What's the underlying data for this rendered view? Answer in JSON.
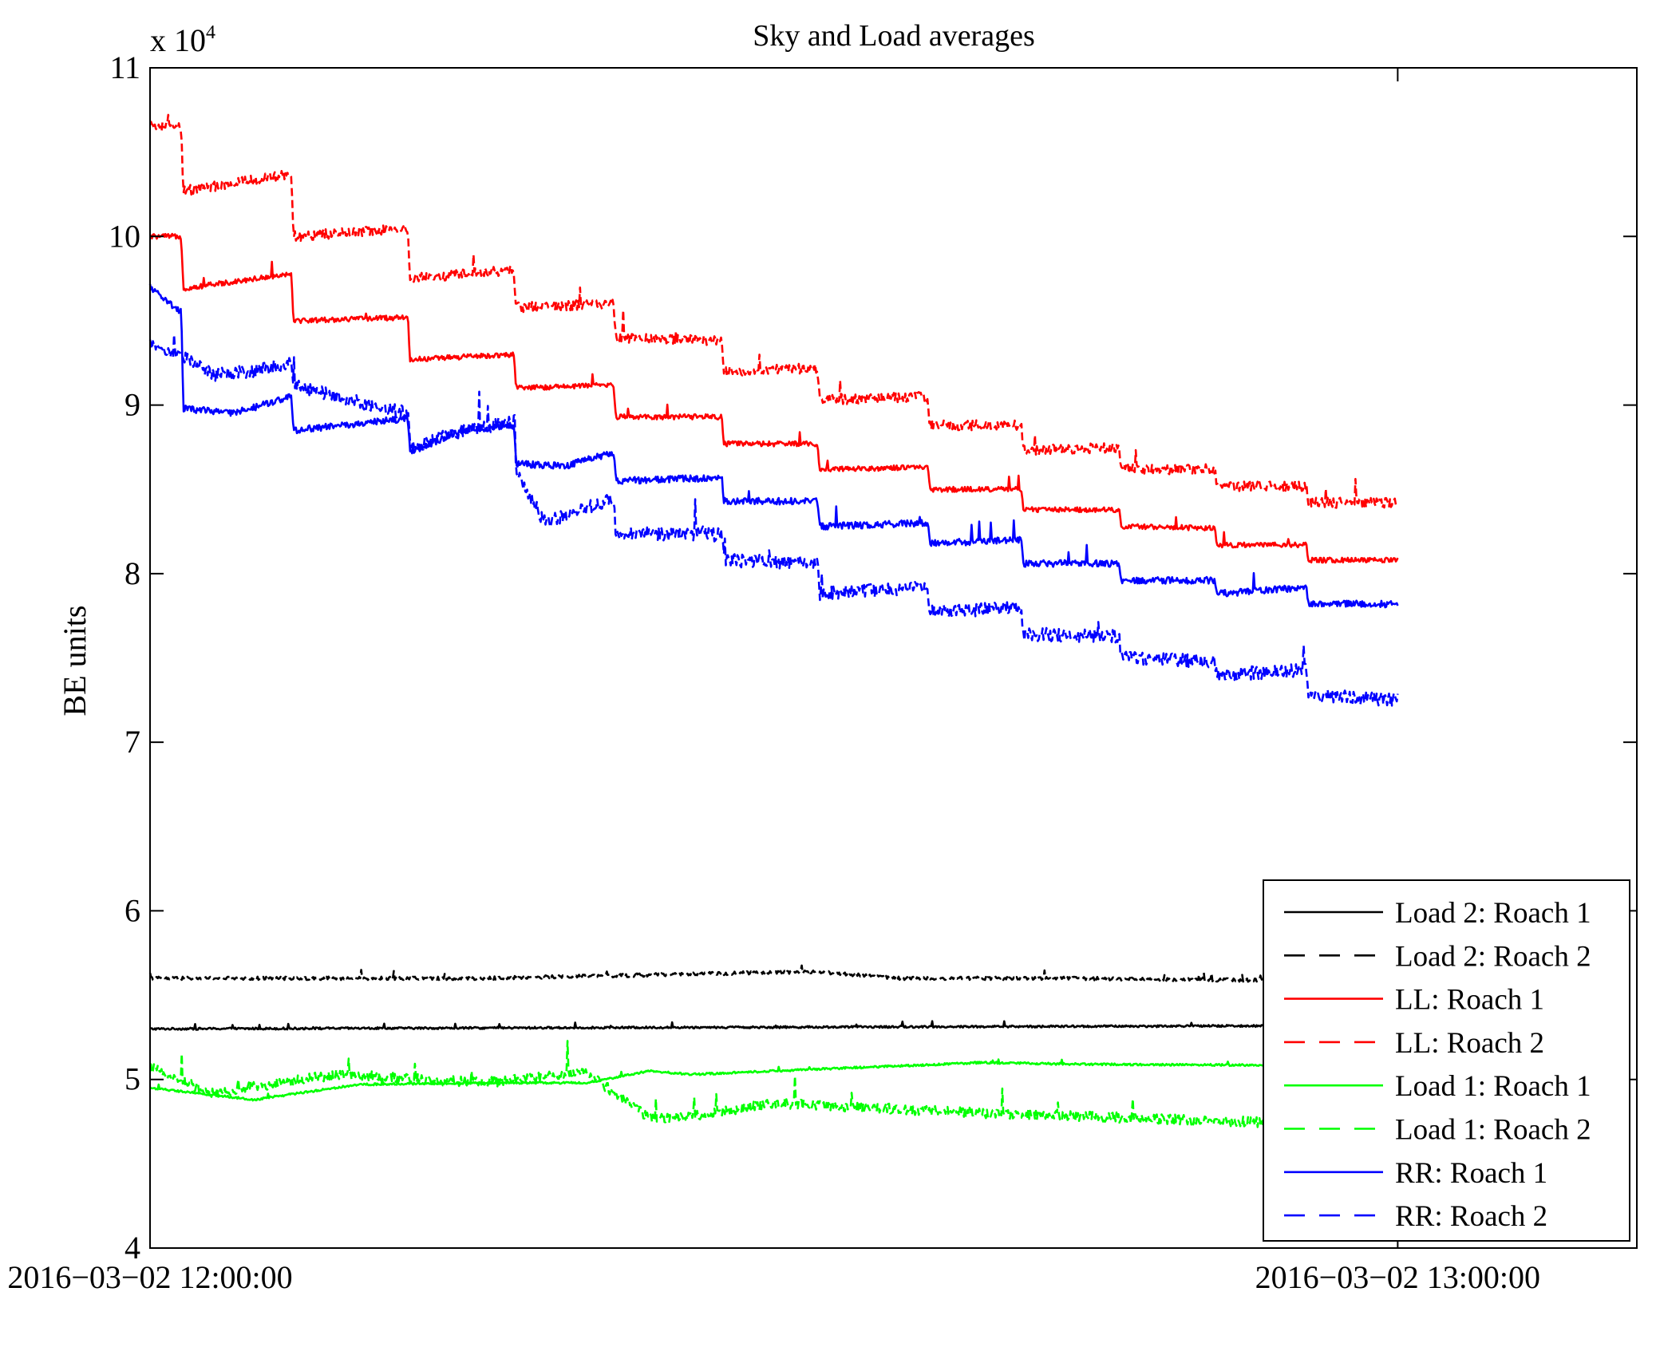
{
  "chart_data": {
    "type": "line",
    "title": "Sky and Load averages",
    "xlabel": "",
    "ylabel": "BE units",
    "y_multiplier_label": "x 10",
    "y_multiplier_exponent": "4",
    "x_ticks": [
      {
        "value": 0,
        "label": "2016−03−02 12:00:00"
      },
      {
        "value": 60,
        "label": "2016−03−02 13:00:00"
      }
    ],
    "xlim": [
      0,
      71.5
    ],
    "x_unit": "minutes after 2016-03-02 12:00:00",
    "ylim": [
      4,
      11
    ],
    "y_ticks": [
      4,
      5,
      6,
      7,
      8,
      9,
      10,
      11
    ],
    "grid": false,
    "legend_position": "lower-right",
    "series": [
      {
        "name": "Load 2: Roach 1",
        "color": "#000000",
        "style": "solid",
        "noise": 0.006,
        "x": [
          0,
          60
        ],
        "y": [
          5.3,
          5.32
        ]
      },
      {
        "name": "Load 2: Roach 2",
        "color": "#000000",
        "style": "dashed",
        "noise": 0.01,
        "x": [
          0,
          8,
          16,
          32,
          36,
          44,
          60
        ],
        "y": [
          5.6,
          5.6,
          5.6,
          5.64,
          5.6,
          5.6,
          5.58
        ]
      },
      {
        "name": "LL: Roach 1",
        "color": "#ff0000",
        "style": "solid",
        "noise": 0.015,
        "x": [
          0,
          1.5,
          1.6,
          6.8,
          6.9,
          12.4,
          12.5,
          17.5,
          17.6,
          22.3,
          22.4,
          27.5,
          27.6,
          32.1,
          32.2,
          37.4,
          37.5,
          41.9,
          42.0,
          46.6,
          46.7,
          51.2,
          51.3,
          55.6,
          55.7,
          60
        ],
        "y": [
          10.0,
          10.0,
          9.69,
          9.78,
          9.5,
          9.52,
          9.27,
          9.3,
          9.1,
          9.12,
          8.93,
          8.93,
          8.77,
          8.77,
          8.62,
          8.63,
          8.5,
          8.5,
          8.38,
          8.38,
          8.28,
          8.27,
          8.17,
          8.17,
          8.08,
          8.08
        ]
      },
      {
        "name": "LL: Roach 2",
        "color": "#ff0000",
        "style": "dashed",
        "noise": 0.03,
        "x": [
          0,
          1.5,
          1.6,
          6.8,
          6.9,
          12.4,
          12.5,
          17.5,
          17.6,
          22.3,
          22.4,
          27.5,
          27.6,
          32.1,
          32.2,
          37.4,
          37.5,
          41.9,
          42.0,
          46.6,
          46.7,
          51.2,
          51.3,
          55.6,
          55.7,
          60
        ],
        "y": [
          10.65,
          10.65,
          10.27,
          10.37,
          10.0,
          10.05,
          9.75,
          9.8,
          9.58,
          9.6,
          9.4,
          9.38,
          9.2,
          9.22,
          9.03,
          9.05,
          8.88,
          8.88,
          8.73,
          8.75,
          8.62,
          8.62,
          8.52,
          8.52,
          8.42,
          8.42
        ]
      },
      {
        "name": "Load 1: Roach 1",
        "color": "#00ff00",
        "style": "solid",
        "noise": 0.006,
        "x": [
          0,
          5,
          10,
          16,
          21,
          24,
          26,
          30,
          40,
          45,
          60
        ],
        "y": [
          4.95,
          4.88,
          4.97,
          4.98,
          4.98,
          5.05,
          5.03,
          5.05,
          5.1,
          5.09,
          5.08
        ]
      },
      {
        "name": "Load 1: Roach 2",
        "color": "#00ff00",
        "style": "dashed",
        "noise": 0.03,
        "x": [
          0,
          3,
          9,
          16,
          21,
          24,
          26,
          30,
          40,
          45,
          60
        ],
        "y": [
          5.07,
          4.92,
          5.03,
          4.98,
          5.04,
          4.77,
          4.78,
          4.86,
          4.8,
          4.78,
          4.72
        ]
      },
      {
        "name": "RR: Roach 1",
        "color": "#0000ff",
        "style": "solid",
        "noise": 0.02,
        "x": [
          0,
          1.5,
          1.6,
          4,
          6.8,
          6.9,
          12.4,
          12.5,
          15,
          17.5,
          17.6,
          20,
          22.3,
          22.4,
          27.5,
          27.6,
          32.1,
          32.2,
          37.4,
          37.5,
          41.9,
          42.0,
          46.6,
          46.7,
          51.2,
          51.3,
          55.6,
          55.7,
          60
        ],
        "y": [
          9.7,
          9.55,
          8.98,
          8.95,
          9.05,
          8.85,
          8.92,
          8.72,
          8.85,
          8.88,
          8.65,
          8.64,
          8.72,
          8.55,
          8.57,
          8.43,
          8.43,
          8.28,
          8.3,
          8.18,
          8.2,
          8.06,
          8.06,
          7.96,
          7.96,
          7.88,
          7.92,
          7.82,
          7.82
        ]
      },
      {
        "name": "RR: Roach 2",
        "color": "#0000ff",
        "style": "dashed",
        "noise": 0.04,
        "x": [
          0,
          1.5,
          3,
          5,
          6.8,
          6.9,
          9,
          12.4,
          12.5,
          15,
          17.5,
          17.6,
          19,
          22.3,
          22.4,
          27.5,
          27.6,
          32.1,
          32.2,
          37.4,
          37.5,
          41.9,
          42.0,
          46.6,
          46.7,
          51.2,
          51.3,
          55.6,
          55.7,
          60
        ],
        "y": [
          9.35,
          9.3,
          9.18,
          9.2,
          9.25,
          9.12,
          9.05,
          8.95,
          8.75,
          8.85,
          8.9,
          8.6,
          8.3,
          8.45,
          8.24,
          8.23,
          8.08,
          8.06,
          7.88,
          7.92,
          7.77,
          7.8,
          7.64,
          7.63,
          7.5,
          7.48,
          7.4,
          7.43,
          7.28,
          7.25
        ]
      }
    ]
  }
}
